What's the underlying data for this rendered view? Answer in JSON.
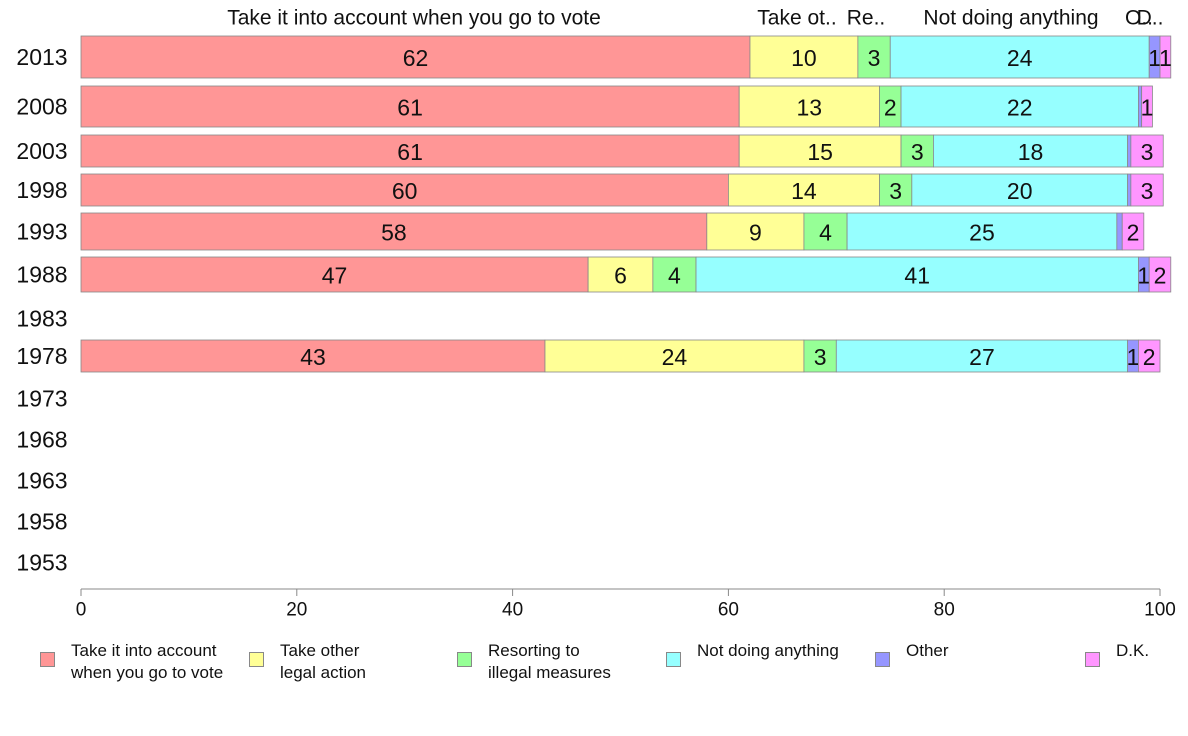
{
  "chart_data": {
    "type": "bar",
    "orientation": "horizontal",
    "stacked": true,
    "categories": [
      "2013",
      "2008",
      "2003",
      "1998",
      "1993",
      "1988",
      "1983",
      "1978",
      "1973",
      "1968",
      "1963",
      "1958",
      "1953"
    ],
    "series": [
      {
        "name": "Take it into account when you go to vote",
        "legend_label": "Take it into account\nwhen you go to vote",
        "top_label": "Take it into account when you go to vote",
        "color": "#ff9696",
        "values": [
          62,
          61,
          61,
          60,
          58,
          47,
          null,
          43,
          null,
          null,
          null,
          null,
          null
        ]
      },
      {
        "name": "Take other legal action",
        "legend_label": "Take other\nlegal action",
        "top_label": "Take ot..",
        "color": "#ffff96",
        "values": [
          10,
          13,
          15,
          14,
          9,
          6,
          null,
          24,
          null,
          null,
          null,
          null,
          null
        ]
      },
      {
        "name": "Resorting to illegal measures",
        "legend_label": "Resorting to\nillegal measures",
        "top_label": "Re..",
        "color": "#96ff96",
        "values": [
          3,
          2,
          3,
          3,
          4,
          4,
          null,
          3,
          null,
          null,
          null,
          null,
          null
        ]
      },
      {
        "name": "Not doing anything",
        "legend_label": "Not doing anything",
        "top_label": "Not doing anything",
        "color": "#96ffff",
        "values": [
          24,
          22,
          18,
          20,
          25,
          41,
          null,
          27,
          null,
          null,
          null,
          null,
          null
        ]
      },
      {
        "name": "Other",
        "legend_label": "Other",
        "top_label": "O..",
        "color": "#9696ff",
        "values": [
          1,
          0.3,
          0.3,
          0.3,
          0.5,
          1,
          null,
          1,
          null,
          null,
          null,
          null,
          null
        ]
      },
      {
        "name": "D.K.",
        "legend_label": "D.K.",
        "top_label": "D..",
        "color": "#ff96ff",
        "values": [
          1,
          1,
          3,
          3,
          2,
          2,
          null,
          2,
          null,
          null,
          null,
          null,
          null
        ]
      }
    ],
    "data_labels": [
      [
        "62",
        "61",
        "61",
        "60",
        "58",
        "47",
        null,
        "43",
        null,
        null,
        null,
        null,
        null
      ],
      [
        "10",
        "13",
        "15",
        "14",
        "9",
        "6",
        null,
        "24",
        null,
        null,
        null,
        null,
        null
      ],
      [
        "3",
        "2",
        "3",
        "3",
        "4",
        "4",
        null,
        "3",
        null,
        null,
        null,
        null,
        null
      ],
      [
        "24",
        "22",
        "18",
        "20",
        "25",
        "41",
        null,
        "27",
        null,
        null,
        null,
        null,
        null
      ],
      [
        "1",
        "",
        "",
        "",
        "",
        "1",
        null,
        "1",
        null,
        null,
        null,
        null,
        null
      ],
      [
        "1",
        "1",
        "3",
        "3",
        "2",
        "2",
        null,
        "2",
        null,
        null,
        null,
        null,
        null
      ]
    ],
    "xlim": [
      0,
      100
    ],
    "xticks": [
      0,
      20,
      40,
      60,
      80,
      100
    ],
    "grid": false,
    "legend_position": "bottom"
  }
}
